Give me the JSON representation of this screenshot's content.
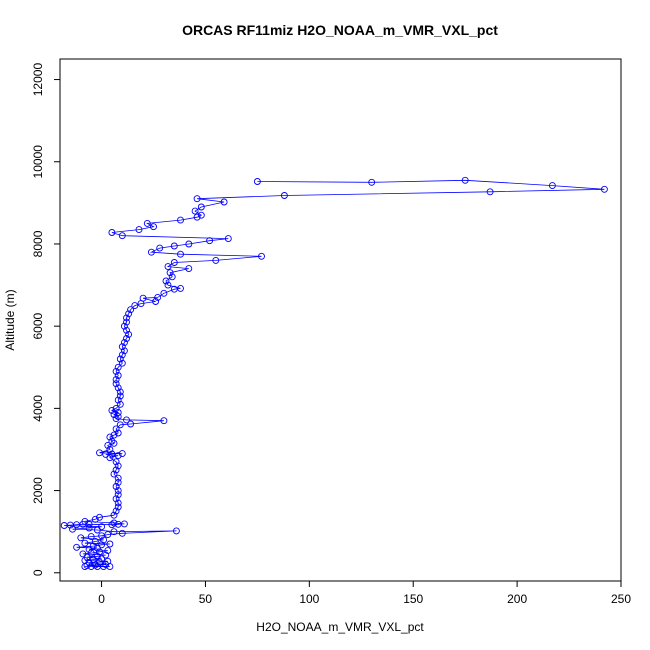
{
  "chart_data": {
    "type": "line",
    "title": "ORCAS RF11miz H2O_NOAA_m_VMR_VXL_pct",
    "xlabel": "H2O_NOAA_m_VMR_VXL_pct",
    "ylabel": "Altitude (m)",
    "xlim": [
      -20,
      250
    ],
    "ylim": [
      -200,
      12500
    ],
    "x_ticks": [
      0,
      50,
      100,
      150,
      200,
      250
    ],
    "y_ticks": [
      0,
      2000,
      4000,
      6000,
      8000,
      10000,
      12000
    ],
    "grid": false,
    "legend": "none",
    "series_color": "#0000ff",
    "marker": "open-circle",
    "series": [
      {
        "points": [
          [
            -8,
            150
          ],
          [
            -5,
            150
          ],
          [
            -2,
            150
          ],
          [
            1,
            150
          ],
          [
            4,
            150
          ],
          [
            -7,
            180
          ],
          [
            -3,
            190
          ],
          [
            2,
            200
          ],
          [
            -6,
            250
          ],
          [
            -1,
            260
          ],
          [
            3,
            280
          ],
          [
            -8,
            300
          ],
          [
            -4,
            320
          ],
          [
            0,
            340
          ],
          [
            -7,
            380
          ],
          [
            -2,
            400
          ],
          [
            2,
            430
          ],
          [
            -9,
            460
          ],
          [
            -5,
            480
          ],
          [
            -1,
            510
          ],
          [
            3,
            540
          ],
          [
            -6,
            570
          ],
          [
            -2,
            600
          ],
          [
            -12,
            620
          ],
          [
            -4,
            650
          ],
          [
            0,
            680
          ],
          [
            4,
            700
          ],
          [
            -8,
            720
          ],
          [
            -3,
            760
          ],
          [
            1,
            800
          ],
          [
            -10,
            850
          ],
          [
            -5,
            880
          ],
          [
            0,
            900
          ],
          [
            3,
            930
          ],
          [
            10,
            960
          ],
          [
            36,
            1020
          ],
          [
            6,
            1000
          ],
          [
            -2,
            1040
          ],
          [
            -14,
            1060
          ],
          [
            -6,
            1090
          ],
          [
            0,
            1120
          ],
          [
            -18,
            1150
          ],
          [
            -15,
            1160
          ],
          [
            -12,
            1170
          ],
          [
            -9,
            1180
          ],
          [
            -6,
            1180
          ],
          [
            5,
            1170
          ],
          [
            8,
            1180
          ],
          [
            11,
            1190
          ],
          [
            6,
            1210
          ],
          [
            -8,
            1250
          ],
          [
            -3,
            1300
          ],
          [
            -1,
            1350
          ],
          [
            6,
            1400
          ],
          [
            7,
            1500
          ],
          [
            8,
            1600
          ],
          [
            8,
            1700
          ],
          [
            7,
            1800
          ],
          [
            8,
            1900
          ],
          [
            8,
            2000
          ],
          [
            7,
            2100
          ],
          [
            8,
            2200
          ],
          [
            8,
            2300
          ],
          [
            6,
            2400
          ],
          [
            7,
            2500
          ],
          [
            8,
            2600
          ],
          [
            7,
            2700
          ],
          [
            4,
            2800
          ],
          [
            8,
            2850
          ],
          [
            2,
            2880
          ],
          [
            5,
            2890
          ],
          [
            10,
            2900
          ],
          [
            -1,
            2920
          ],
          [
            4,
            3000
          ],
          [
            3,
            3100
          ],
          [
            6,
            3150
          ],
          [
            5,
            3200
          ],
          [
            4,
            3300
          ],
          [
            6,
            3350
          ],
          [
            8,
            3400
          ],
          [
            7,
            3500
          ],
          [
            9,
            3600
          ],
          [
            14,
            3620
          ],
          [
            30,
            3700
          ],
          [
            12,
            3720
          ],
          [
            7,
            3750
          ],
          [
            8,
            3800
          ],
          [
            6,
            3850
          ],
          [
            8,
            3900
          ],
          [
            5,
            3950
          ],
          [
            7,
            4000
          ],
          [
            9,
            4100
          ],
          [
            8,
            4200
          ],
          [
            9,
            4300
          ],
          [
            9,
            4400
          ],
          [
            8,
            4500
          ],
          [
            7,
            4600
          ],
          [
            7,
            4700
          ],
          [
            8,
            4800
          ],
          [
            7,
            4900
          ],
          [
            8,
            5000
          ],
          [
            10,
            5100
          ],
          [
            9,
            5200
          ],
          [
            10,
            5300
          ],
          [
            11,
            5400
          ],
          [
            10,
            5500
          ],
          [
            11,
            5600
          ],
          [
            12,
            5700
          ],
          [
            13,
            5800
          ],
          [
            12,
            5900
          ],
          [
            11,
            6000
          ],
          [
            12,
            6100
          ],
          [
            12,
            6200
          ],
          [
            13,
            6300
          ],
          [
            14,
            6400
          ],
          [
            16,
            6500
          ],
          [
            19,
            6550
          ],
          [
            26,
            6600
          ],
          [
            20,
            6680
          ],
          [
            27,
            6700
          ],
          [
            30,
            6800
          ],
          [
            35,
            6900
          ],
          [
            38,
            6920
          ],
          [
            32,
            7000
          ],
          [
            31,
            7100
          ],
          [
            34,
            7200
          ],
          [
            33,
            7300
          ],
          [
            42,
            7400
          ],
          [
            32,
            7450
          ],
          [
            35,
            7550
          ],
          [
            55,
            7600
          ],
          [
            77,
            7700
          ],
          [
            38,
            7750
          ],
          [
            24,
            7800
          ],
          [
            28,
            7900
          ],
          [
            35,
            7950
          ],
          [
            42,
            8000
          ],
          [
            52,
            8080
          ],
          [
            61,
            8130
          ],
          [
            10,
            8200
          ],
          [
            5,
            8280
          ],
          [
            18,
            8350
          ],
          [
            25,
            8420
          ],
          [
            22,
            8500
          ],
          [
            38,
            8580
          ],
          [
            46,
            8650
          ],
          [
            48,
            8700
          ],
          [
            45,
            8800
          ],
          [
            48,
            8900
          ],
          [
            59,
            9020
          ],
          [
            46,
            9100
          ],
          [
            88,
            9180
          ],
          [
            187,
            9270
          ],
          [
            242,
            9330
          ],
          [
            217,
            9420
          ],
          [
            175,
            9550
          ],
          [
            130,
            9500
          ],
          [
            75,
            9520
          ]
        ]
      }
    ]
  }
}
